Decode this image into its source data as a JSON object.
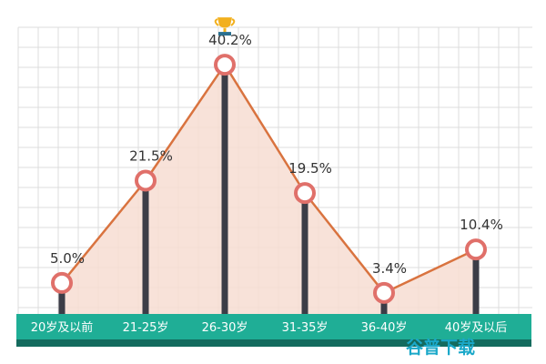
{
  "chart_data": {
    "type": "line",
    "categories": [
      "20岁及以前",
      "21-25岁",
      "26-30岁",
      "31-35岁",
      "36-40岁",
      "40岁及以后"
    ],
    "values": [
      5.0,
      21.5,
      40.2,
      19.5,
      3.4,
      10.4
    ],
    "value_labels": [
      "5.0%",
      "21.5%",
      "40.2%",
      "19.5%",
      "3.4%",
      "10.4%"
    ],
    "ylim": [
      0,
      43
    ],
    "grid": true,
    "highlight_icon": "trophy-icon",
    "highlight_index": 2
  },
  "colors": {
    "line": "#d9733f",
    "area": "#f7ddd2",
    "marker_ring": "#e0706a",
    "stem": "#3c3d47",
    "axis_band": "#1fae96",
    "axis_band_dark": "#146b5e",
    "grid": "#dcdcdc",
    "watermark": "#1aa8c9"
  },
  "watermark": {
    "text": "谷普下载"
  }
}
